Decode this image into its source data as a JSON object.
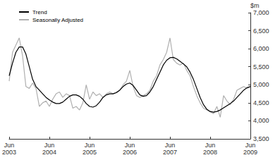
{
  "chart_data": {
    "type": "line",
    "y_label": "$m",
    "categories": [
      "Jun 2003",
      null,
      null,
      null,
      null,
      null,
      null,
      null,
      null,
      null,
      null,
      null,
      "Jun 2004",
      null,
      null,
      null,
      null,
      null,
      null,
      null,
      null,
      null,
      null,
      null,
      "Jun 2005",
      null,
      null,
      null,
      null,
      null,
      null,
      null,
      null,
      null,
      null,
      null,
      "Jun 2006",
      null,
      null,
      null,
      null,
      null,
      null,
      null,
      null,
      null,
      null,
      null,
      "Jun 2007",
      null,
      null,
      null,
      null,
      null,
      null,
      null,
      null,
      null,
      null,
      null,
      "Jun 2008",
      null,
      null,
      null,
      null,
      null,
      null,
      null,
      null,
      null,
      null,
      null,
      "Jun 2009"
    ],
    "series": [
      {
        "name": "Trend",
        "color": "#000000",
        "values": [
          5250,
          5600,
          5900,
          6050,
          6050,
          5850,
          5500,
          5150,
          4950,
          4850,
          4750,
          4650,
          4580,
          4520,
          4480,
          4480,
          4520,
          4600,
          4680,
          4720,
          4720,
          4680,
          4600,
          4480,
          4400,
          4380,
          4420,
          4520,
          4650,
          4720,
          4750,
          4750,
          4780,
          4850,
          4950,
          5020,
          5050,
          4980,
          4850,
          4720,
          4680,
          4700,
          4800,
          4950,
          5150,
          5350,
          5550,
          5680,
          5750,
          5760,
          5720,
          5650,
          5580,
          5500,
          5350,
          5150,
          4900,
          4650,
          4450,
          4320,
          4260,
          4240,
          4260,
          4300,
          4360,
          4420,
          4480,
          4550,
          4650,
          4750,
          4850,
          4920,
          4950
        ]
      },
      {
        "name": "Seasonally Adjusted",
        "color": "#b0b0b0",
        "values": [
          5100,
          5900,
          6100,
          6300,
          5800,
          4950,
          4900,
          5050,
          4900,
          4400,
          4500,
          4550,
          4400,
          4600,
          4750,
          4800,
          4650,
          4750,
          4700,
          4350,
          4400,
          4300,
          4500,
          5000,
          4600,
          4800,
          4700,
          4750,
          4650,
          4750,
          4800,
          4750,
          4800,
          4850,
          5000,
          5100,
          5400,
          4950,
          4700,
          4650,
          4700,
          4750,
          4850,
          5100,
          5250,
          5550,
          5700,
          5900,
          6300,
          5700,
          5600,
          5550,
          5600,
          5400,
          5250,
          4950,
          4700,
          4500,
          4350,
          4300,
          4250,
          4200,
          4400,
          4100,
          4700,
          4550,
          4450,
          4600,
          4850,
          4900,
          4950,
          4900,
          4950
        ]
      }
    ],
    "ylim": [
      3500,
      7000
    ],
    "yticks": [
      3500,
      4000,
      4500,
      5000,
      5500,
      6000,
      6500,
      7000
    ],
    "grid": false,
    "legend": "top-left"
  }
}
